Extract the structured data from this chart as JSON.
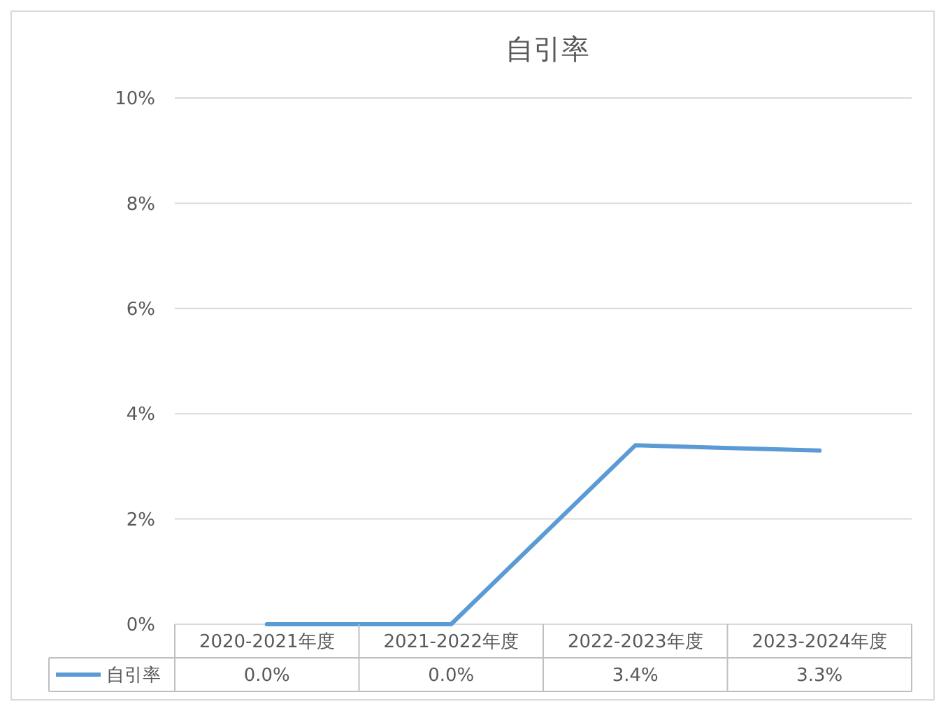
{
  "chart_data": {
    "type": "line",
    "title": "自引率",
    "categories": [
      "2020-2021年度",
      "2021-2022年度",
      "2022-2023年度",
      "2023-2024年度"
    ],
    "series": [
      {
        "name": "自引率",
        "color": "#5b9bd5",
        "values": [
          0.0,
          0.0,
          3.4,
          3.3
        ],
        "value_labels": [
          "0.0%",
          "0.0%",
          "3.4%",
          "3.3%"
        ]
      }
    ],
    "ylim": [
      0,
      10
    ],
    "yticks": [
      {
        "value": 0,
        "label": "0%"
      },
      {
        "value": 2,
        "label": "2%"
      },
      {
        "value": 4,
        "label": "4%"
      },
      {
        "value": 6,
        "label": "6%"
      },
      {
        "value": 8,
        "label": "8%"
      },
      {
        "value": 10,
        "label": "10%"
      }
    ],
    "grid": "y",
    "legend": "bottom",
    "marker": "none",
    "line_style": "solid"
  }
}
